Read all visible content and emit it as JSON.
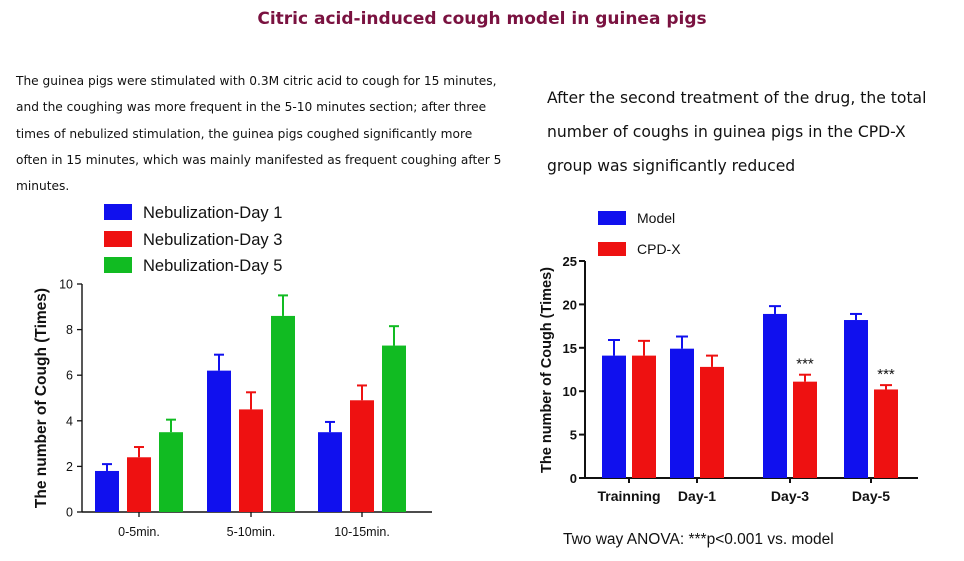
{
  "page": {
    "title": "Citric acid-induced cough model in guinea pigs",
    "left_paragraph": "The guinea pigs were stimulated with 0.3M citric acid to cough for 15 minutes, and the coughing was more frequent in the 5-10 minutes section; after three times of nebulized stimulation, the guinea pigs coughed significantly more often in 15 minutes, which was mainly manifested as frequent coughing after 5 minutes.",
    "right_paragraph": "After the second treatment of the drug, the total number of coughs in guinea pigs in the CPD-X group was significantly reduced",
    "anova_note": "Two way ANOVA: ***p<0.001 vs. model"
  },
  "chart_data": [
    {
      "type": "bar",
      "ylabel": "The number of Cough (Times)",
      "ylim": [
        0,
        10
      ],
      "yticks": [
        0,
        2,
        4,
        6,
        8,
        10
      ],
      "categories": [
        "0-5min.",
        "5-10min.",
        "10-15min."
      ],
      "legend_position": "top-left",
      "series": [
        {
          "name": "Nebulization-Day 1",
          "color": "#1010ee",
          "values": [
            1.8,
            6.2,
            3.5
          ],
          "errors": [
            0.3,
            0.7,
            0.45
          ]
        },
        {
          "name": "Nebulization-Day 3",
          "color": "#ee1111",
          "values": [
            2.4,
            4.5,
            4.9
          ],
          "errors": [
            0.45,
            0.75,
            0.65
          ]
        },
        {
          "name": "Nebulization-Day 5",
          "color": "#11bb22",
          "values": [
            3.5,
            8.6,
            7.3
          ],
          "errors": [
            0.55,
            0.9,
            0.85
          ]
        }
      ]
    },
    {
      "type": "bar",
      "ylabel": "The number of Cough (Times)",
      "ylim": [
        0,
        25
      ],
      "yticks": [
        0,
        5,
        10,
        15,
        20,
        25
      ],
      "categories": [
        "Trainning",
        "Day-1",
        "Day-3",
        "Day-5"
      ],
      "legend_position": "top-left",
      "series": [
        {
          "name": "Model",
          "color": "#1010ee",
          "values": [
            14.1,
            14.9,
            18.9,
            18.2
          ],
          "errors": [
            1.8,
            1.4,
            0.9,
            0.7
          ],
          "annotations": [
            "",
            "",
            "",
            ""
          ]
        },
        {
          "name": "CPD-X",
          "color": "#ee1111",
          "values": [
            14.1,
            12.8,
            11.1,
            10.2
          ],
          "errors": [
            1.7,
            1.3,
            0.8,
            0.5
          ],
          "annotations": [
            "",
            "",
            "***",
            "***"
          ]
        }
      ]
    }
  ]
}
